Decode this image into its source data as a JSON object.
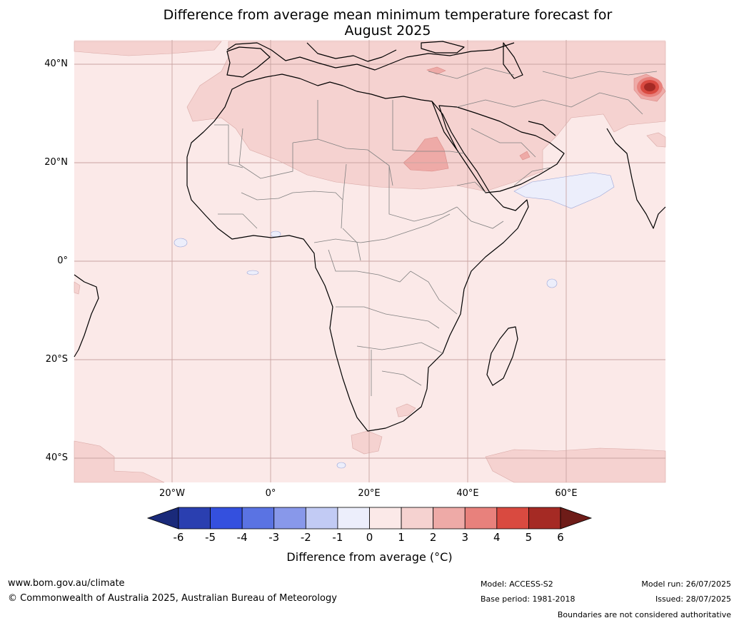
{
  "title_line1": "Difference from average mean minimum temperature forecast for",
  "title_line2": "August 2025",
  "latitude_labels": [
    "40°N",
    "20°N",
    "0°",
    "20°S",
    "40°S"
  ],
  "longitude_labels": [
    "20°W",
    "0°",
    "20°E",
    "40°E",
    "60°E"
  ],
  "colorbar": {
    "ticks": [
      "-6",
      "-5",
      "-4",
      "-3",
      "-2",
      "-1",
      "0",
      "1",
      "2",
      "3",
      "4",
      "5",
      "6"
    ],
    "colors": [
      "#1a2a7a",
      "#2a3fb0",
      "#3450de",
      "#5a73e3",
      "#8898ea",
      "#c2cbf4",
      "#eceefb",
      "#fbe9e8",
      "#f5d2d0",
      "#eeaaa7",
      "#e8817c",
      "#d94a40",
      "#a52a24",
      "#6e1c18"
    ],
    "label": "Difference from average ($^\\circ$C)",
    "label_display": "Difference from average (°C)"
  },
  "footer": {
    "website": "www.bom.gov.au/climate",
    "copyright": "© Commonwealth of Australia 2025, Australian Bureau of Meteorology",
    "model": "Model: ACCESS-S2",
    "base_period": "Base period: 1981-2018",
    "model_run": "Model run: 26/07/2025",
    "issued": "Issued: 28/07/2025",
    "boundaries_note": "Boundaries are not considered authoritative"
  }
}
